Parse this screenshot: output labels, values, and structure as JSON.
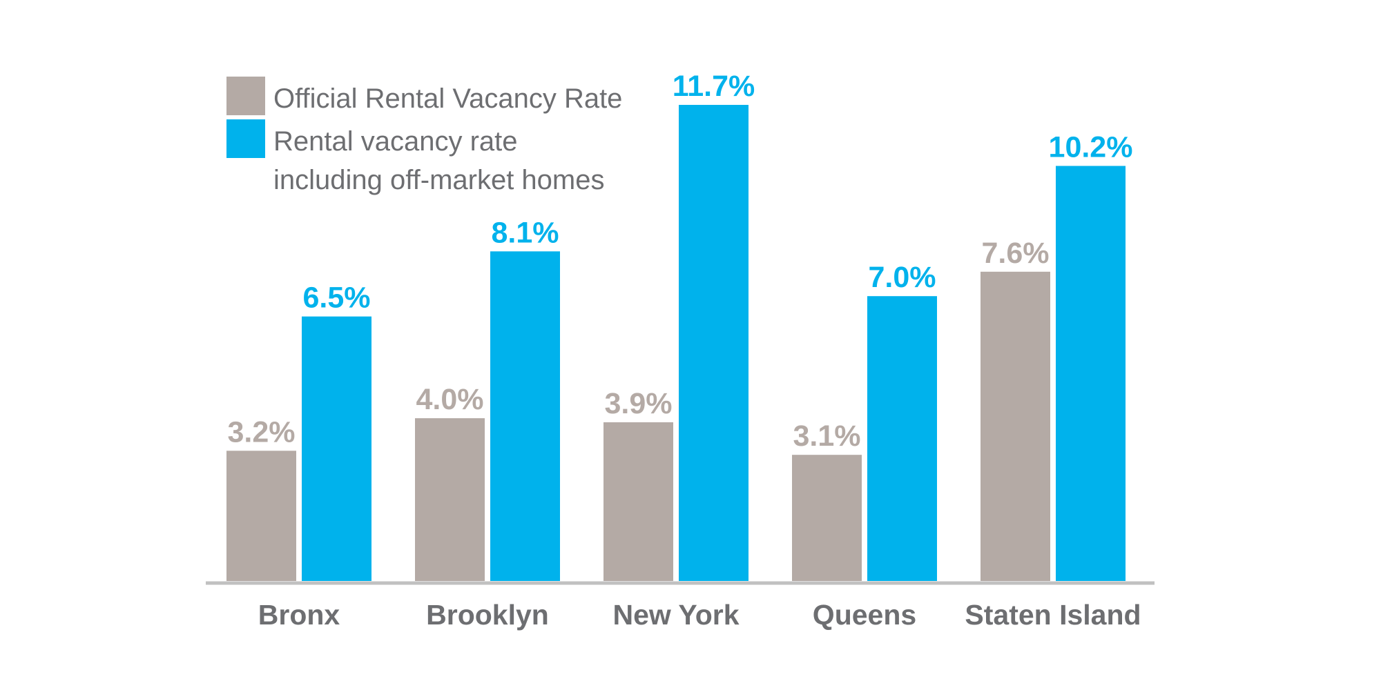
{
  "chart_data": {
    "type": "bar",
    "categories": [
      "Bronx",
      "Brooklyn",
      "New York",
      "Queens",
      "Staten Island"
    ],
    "series": [
      {
        "name": "Official Rental Vacancy Rate",
        "values": [
          3.2,
          4.0,
          3.9,
          3.1,
          7.6
        ],
        "labels": [
          "3.2%",
          "4.0%",
          "3.9%",
          "3.1%",
          "7.6%"
        ],
        "color": "#b4aaa5"
      },
      {
        "name": "Rental vacancy rate including off-market homes",
        "name_lines": [
          "Rental vacancy rate",
          "including off-market homes"
        ],
        "values": [
          6.5,
          8.1,
          11.7,
          7.0,
          10.2
        ],
        "labels": [
          "6.5%",
          "8.1%",
          "11.7%",
          "7.0%",
          "10.2%"
        ],
        "color": "#00b2ec"
      }
    ],
    "title": "",
    "xlabel": "",
    "ylabel": "",
    "ylim": [
      0,
      11.7
    ],
    "grid": false,
    "legend_position": "top-left",
    "axis_color": "#c1c1c1",
    "label_color": "#6d6e71"
  }
}
